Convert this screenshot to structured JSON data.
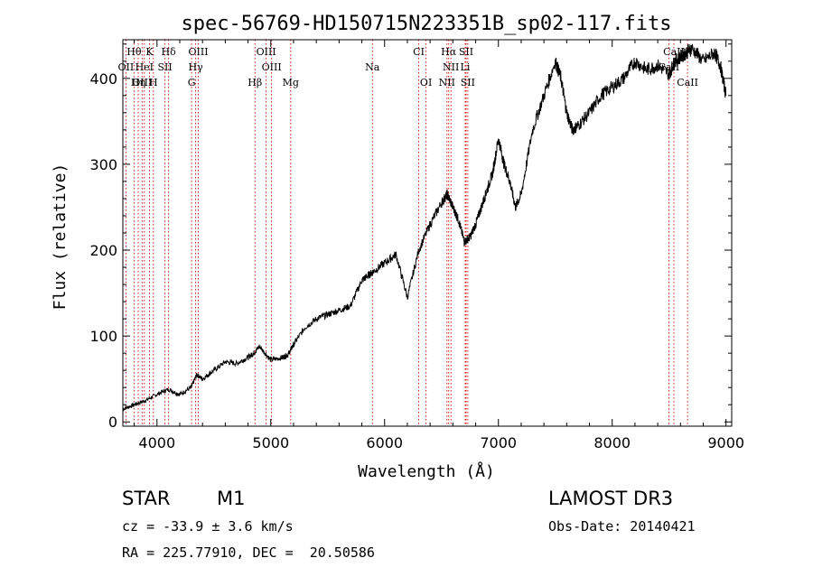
{
  "chart_data": {
    "type": "line",
    "title": "spec-56769-HD150715N223351B_sp02-117.fits",
    "xlabel": "Wavelength (Å)",
    "ylabel": "Flux (relative)",
    "xlim": [
      3700,
      9050
    ],
    "ylim": [
      -5,
      445
    ],
    "x_ticks": [
      4000,
      5000,
      6000,
      7000,
      8000,
      9000
    ],
    "x_tick_labels": [
      "4000",
      "5000",
      "6000",
      "7000",
      "8000",
      "9000"
    ],
    "y_ticks": [
      0,
      100,
      200,
      300,
      400
    ],
    "y_tick_labels": [
      "0",
      "100",
      "200",
      "300",
      "400"
    ],
    "series": [
      {
        "name": "spectrum",
        "x": [
          3700,
          3800,
          3900,
          4000,
          4100,
          4200,
          4300,
          4350,
          4400,
          4500,
          4600,
          4700,
          4800,
          4850,
          4900,
          5000,
          5100,
          5150,
          5200,
          5300,
          5400,
          5500,
          5600,
          5700,
          5800,
          5850,
          5900,
          6000,
          6100,
          6200,
          6300,
          6400,
          6500,
          6550,
          6600,
          6650,
          6700,
          6750,
          6800,
          6850,
          6900,
          6950,
          7000,
          7050,
          7100,
          7150,
          7200,
          7300,
          7400,
          7500,
          7550,
          7600,
          7650,
          7700,
          7800,
          7900,
          8000,
          8100,
          8200,
          8300,
          8400,
          8500,
          8550,
          8600,
          8650,
          8700,
          8800,
          8900,
          8950,
          9000
        ],
        "y": [
          15,
          20,
          25,
          32,
          38,
          32,
          40,
          55,
          50,
          60,
          70,
          68,
          75,
          80,
          88,
          72,
          75,
          78,
          90,
          110,
          120,
          125,
          130,
          135,
          165,
          170,
          175,
          185,
          195,
          145,
          200,
          230,
          255,
          265,
          250,
          235,
          210,
          215,
          230,
          250,
          270,
          290,
          330,
          300,
          280,
          250,
          265,
          340,
          380,
          420,
          400,
          360,
          340,
          345,
          360,
          380,
          390,
          400,
          420,
          410,
          415,
          405,
          420,
          425,
          430,
          435,
          420,
          430,
          415,
          380
        ]
      }
    ],
    "line_ids": [
      {
        "label": "Hθ",
        "wavelength": 3798,
        "row": 0
      },
      {
        "label": "K",
        "wavelength": 3934,
        "row": 0
      },
      {
        "label": "Hδ",
        "wavelength": 4102,
        "row": 0
      },
      {
        "label": "OIII",
        "wavelength": 4363,
        "row": 0
      },
      {
        "label": "OIII",
        "wavelength": 4959,
        "row": 0
      },
      {
        "label": "CI",
        "wavelength": 6300,
        "row": 0
      },
      {
        "label": "Hα",
        "wavelength": 6563,
        "row": 0
      },
      {
        "label": "SII",
        "wavelength": 6716,
        "row": 0
      },
      {
        "label": "CaII",
        "wavelength": 8542,
        "row": 0
      },
      {
        "label": "OII",
        "wavelength": 3727,
        "row": 1
      },
      {
        "label": "HeI",
        "wavelength": 3889,
        "row": 1
      },
      {
        "label": "SII",
        "wavelength": 4070,
        "row": 1
      },
      {
        "label": "Hγ",
        "wavelength": 4340,
        "row": 1
      },
      {
        "label": "OIII",
        "wavelength": 5007,
        "row": 1
      },
      {
        "label": "Na",
        "wavelength": 5893,
        "row": 1
      },
      {
        "label": "NII",
        "wavelength": 6583,
        "row": 1
      },
      {
        "label": "Li",
        "wavelength": 6708,
        "row": 1
      },
      {
        "label": "CaII",
        "wavelength": 8498,
        "row": 1
      },
      {
        "label": "OIII",
        "wavelength": 3869,
        "row": 2
      },
      {
        "label": "Hη",
        "wavelength": 3835,
        "row": 2
      },
      {
        "label": "H",
        "wavelength": 3968,
        "row": 2
      },
      {
        "label": "G",
        "wavelength": 4304,
        "row": 2
      },
      {
        "label": "Hβ",
        "wavelength": 4861,
        "row": 2
      },
      {
        "label": "Mg",
        "wavelength": 5175,
        "row": 2
      },
      {
        "label": "OI",
        "wavelength": 6364,
        "row": 2
      },
      {
        "label": "NII",
        "wavelength": 6548,
        "row": 2
      },
      {
        "label": "SII",
        "wavelength": 6731,
        "row": 2
      },
      {
        "label": "CaII",
        "wavelength": 8662,
        "row": 2
      }
    ]
  },
  "info": {
    "object_type": "STAR",
    "subclass": "M1",
    "survey": "LAMOST DR3",
    "cz": "cz = -33.9 ± 3.6 km/s",
    "obs_date": "Obs-Date: 20140421",
    "coords": "RA = 225.77910, DEC =  20.50586"
  },
  "colors": {
    "spectrum": "#000000",
    "line_markers": "#cc0000",
    "axes": "#000000"
  }
}
